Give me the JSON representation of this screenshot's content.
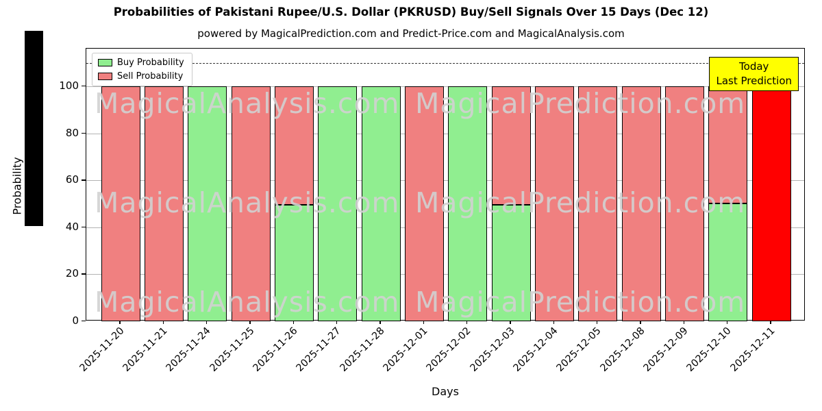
{
  "title": "Probabilities of Pakistani Rupee/U.S. Dollar (PKRUSD) Buy/Sell Signals Over 15 Days (Dec 12)",
  "subtitle": "powered by MagicalPrediction.com and Predict-Price.com and MagicalAnalysis.com",
  "legend": {
    "items": [
      {
        "label": "Buy Probability",
        "color": "#90EE90"
      },
      {
        "label": "Sell Probability",
        "color": "#F08080"
      }
    ]
  },
  "annotation_box": {
    "lines": [
      "Today",
      "Last Prediction"
    ],
    "bg": "#FFFF00"
  },
  "watermarks": {
    "left": "MagicalAnalysis.com",
    "right": "MagicalPrediction.com"
  },
  "chart_data": {
    "type": "bar",
    "stacked": true,
    "title": "Probabilities of Pakistani Rupee/U.S. Dollar (PKRUSD) Buy/Sell Signals Over 15 Days (Dec 12)",
    "xlabel": "Days",
    "ylabel": "Probability",
    "ylim": [
      0,
      116
    ],
    "yticks": [
      0,
      20,
      40,
      60,
      80,
      100
    ],
    "grid": "horizontal",
    "dashed_line_y": 110,
    "legend_position": "upper left",
    "categories": [
      "2025-11-20",
      "2025-11-21",
      "2025-11-24",
      "2025-11-25",
      "2025-11-26",
      "2025-11-27",
      "2025-11-28",
      "2025-12-01",
      "2025-12-02",
      "2025-12-03",
      "2025-12-04",
      "2025-12-05",
      "2025-12-08",
      "2025-12-09",
      "2025-12-10",
      "2025-12-11"
    ],
    "series": [
      {
        "name": "Buy Probability",
        "color": "#90EE90",
        "values": [
          0,
          0,
          100,
          0,
          49.5,
          100,
          100,
          0,
          100,
          49.5,
          0,
          0,
          0,
          0,
          50,
          0
        ]
      },
      {
        "name": "Sell Probability",
        "color": "#F08080",
        "values": [
          100,
          100,
          0,
          100,
          50.5,
          0,
          0,
          100,
          0,
          50.5,
          100,
          100,
          100,
          100,
          50,
          100
        ]
      }
    ],
    "today_index": 15,
    "today_color": "#FF0000"
  }
}
